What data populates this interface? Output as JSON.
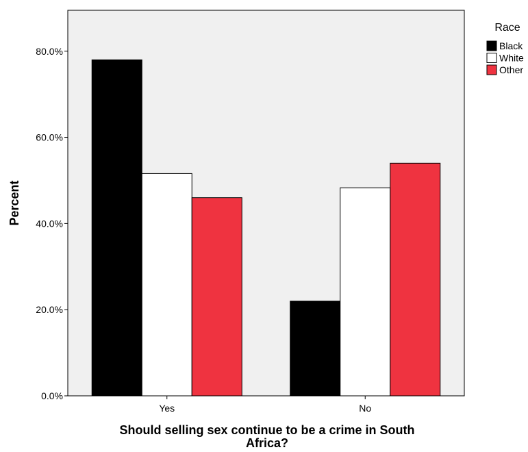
{
  "chart_data": {
    "type": "bar",
    "title": "",
    "xlabel_lines": [
      "Should selling sex continue to be a crime in South",
      "Africa?"
    ],
    "ylabel": "Percent",
    "categories": [
      "Yes",
      "No"
    ],
    "series": [
      {
        "name": "Black",
        "values": [
          78.0,
          22.0
        ],
        "color": "#000000"
      },
      {
        "name": "White",
        "values": [
          51.6,
          48.3
        ],
        "color": "#ffffff"
      },
      {
        "name": "Other",
        "values": [
          46.0,
          54.0
        ],
        "color": "#ef3340"
      }
    ],
    "ylim": [
      0,
      89.5
    ],
    "yticks": [
      0,
      20,
      40,
      60,
      80
    ],
    "ytick_labels": [
      "0.0%",
      "20.0%",
      "40.0%",
      "60.0%",
      "80.0%"
    ],
    "legend": {
      "title": "Race",
      "position": "top-right"
    },
    "plot_background": "#f0f0f0",
    "grid": false
  }
}
